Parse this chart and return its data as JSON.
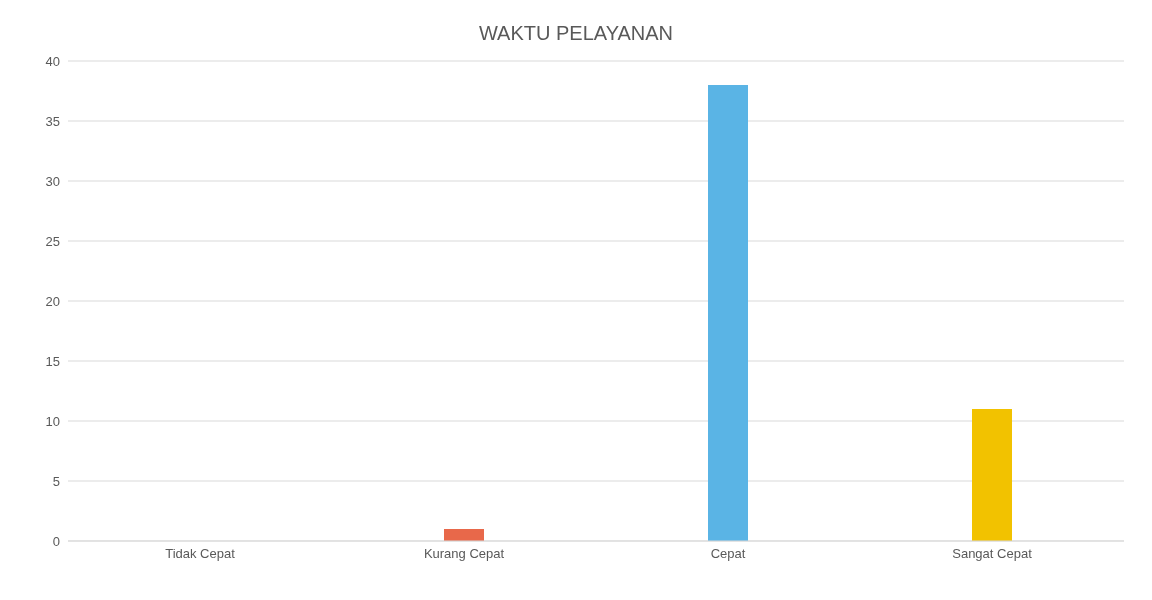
{
  "chart_data": {
    "type": "bar",
    "title": "WAKTU PELAYANAN",
    "categories": [
      "Tidak Cepat",
      "Kurang Cepat",
      "Cepat",
      "Sangat Cepat"
    ],
    "values": [
      0,
      1,
      38,
      11
    ],
    "colors": [
      "#4472c4",
      "#e8684a",
      "#5ab4e5",
      "#f2c200"
    ],
    "ylim": [
      0,
      40
    ],
    "yticks": [
      0,
      5,
      10,
      15,
      20,
      25,
      30,
      35,
      40
    ],
    "grid": "y",
    "legend": false
  }
}
